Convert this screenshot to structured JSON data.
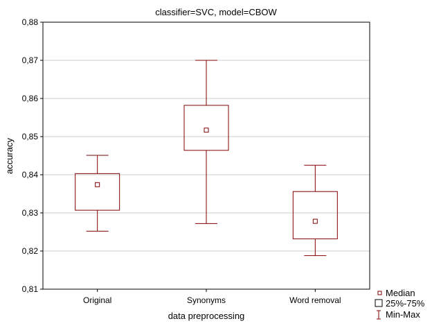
{
  "chart_data": {
    "type": "box",
    "title": "classifier=SVC, model=CBOW",
    "xlabel": "data preprocessing",
    "ylabel": "accuracy",
    "ylim": [
      0.81,
      0.88
    ],
    "yticks": [
      "0,81",
      "0,82",
      "0,83",
      "0,84",
      "0,85",
      "0,86",
      "0,87",
      "0,88"
    ],
    "categories": [
      "Original",
      "Synonyms",
      "Word removal"
    ],
    "boxes": [
      {
        "category": "Original",
        "min": 0.8252,
        "q1": 0.8307,
        "median": 0.8374,
        "q3": 0.8403,
        "max": 0.8451
      },
      {
        "category": "Synonyms",
        "min": 0.8272,
        "q1": 0.8464,
        "median": 0.8517,
        "q3": 0.8582,
        "max": 0.87
      },
      {
        "category": "Word removal",
        "min": 0.8188,
        "q1": 0.8232,
        "median": 0.8278,
        "q3": 0.8356,
        "max": 0.8425
      }
    ],
    "grid": "horizontal",
    "legend_position": "bottom-right",
    "legend": [
      "Median",
      "25%-75%",
      "Min-Max"
    ],
    "colors": {
      "box": "#800000",
      "grid": "#cccccc",
      "axis": "#000000"
    }
  }
}
